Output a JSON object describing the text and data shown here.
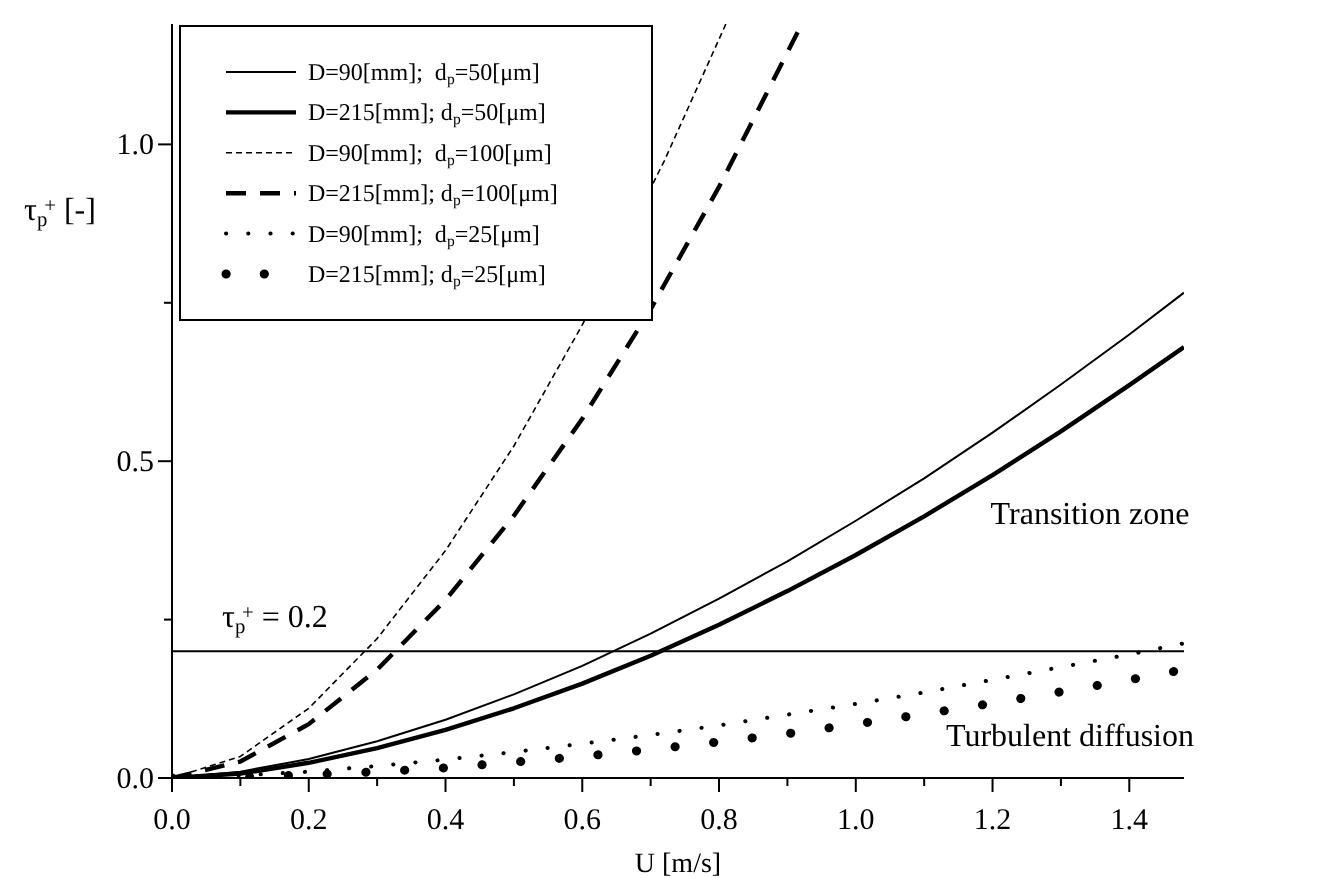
{
  "chart_data": {
    "type": "line",
    "xlabel": "U [m/s]",
    "ylabel": "τ$_{p}$$^{+}$ [-]",
    "xlim": [
      0,
      1.48
    ],
    "ylim": [
      0,
      1.19
    ],
    "xticks": [
      {
        "value": 0,
        "label": "0.0"
      },
      {
        "value": 0.1,
        "label": null
      },
      {
        "value": 0.2,
        "label": "0.2"
      },
      {
        "value": 0.3,
        "label": null
      },
      {
        "value": 0.4,
        "label": "0.4"
      },
      {
        "value": 0.5,
        "label": null
      },
      {
        "value": 0.6,
        "label": "0.6"
      },
      {
        "value": 0.7,
        "label": null
      },
      {
        "value": 0.8,
        "label": "0.8"
      },
      {
        "value": 0.9,
        "label": null
      },
      {
        "value": 1,
        "label": "1.0"
      },
      {
        "value": 1.1,
        "label": null
      },
      {
        "value": 1.2,
        "label": "1.2"
      },
      {
        "value": 1.3,
        "label": null
      },
      {
        "value": 1.4,
        "label": "1.4"
      }
    ],
    "yticks": [
      {
        "value": 0,
        "label": "0.0"
      },
      {
        "value": 0.25,
        "label": null
      },
      {
        "value": 0.5,
        "label": "0.5"
      },
      {
        "value": 0.75,
        "label": null
      },
      {
        "value": 1,
        "label": "1.0"
      }
    ],
    "grid": false,
    "legend": "top left",
    "series": [
      {
        "name": "D=90[mm];  d$_{p}$=50[μm]",
        "color": "#000000",
        "line_style": "solid",
        "x": [
          0,
          0.1,
          0.2,
          0.3,
          0.4,
          0.5,
          0.6,
          0.7,
          0.8,
          0.9,
          1.0,
          1.1,
          1.2,
          1.3,
          1.4,
          1.48
        ],
        "values": [
          0,
          0.01,
          0.03,
          0.058,
          0.092,
          0.132,
          0.177,
          0.228,
          0.283,
          0.342,
          0.406,
          0.473,
          0.545,
          0.621,
          0.7,
          0.766
        ]
      },
      {
        "name": "D=215[mm]; d$_{p}$=50[μm]",
        "color": "#000000",
        "line_style": "solid",
        "x": [
          0,
          0.1,
          0.2,
          0.3,
          0.4,
          0.5,
          0.6,
          0.7,
          0.8,
          0.9,
          1.0,
          1.1,
          1.2,
          1.3,
          1.4,
          1.48
        ],
        "values": [
          0,
          0.007,
          0.024,
          0.047,
          0.076,
          0.11,
          0.149,
          0.193,
          0.242,
          0.295,
          0.352,
          0.413,
          0.478,
          0.547,
          0.62,
          0.68
        ]
      },
      {
        "name": "D=90[mm];  d$_{p}$=100[μm]",
        "color": "#000000",
        "line_style": "dotted",
        "x": [
          0,
          0.1,
          0.2,
          0.3,
          0.4,
          0.5,
          0.6,
          0.72,
          0.81
        ],
        "values": [
          0,
          0.034,
          0.11,
          0.22,
          0.359,
          0.524,
          0.715,
          0.974,
          1.19
        ]
      },
      {
        "name": "D=215[mm]; d$_{p}$=100[μm]",
        "color": "#000000",
        "line_style": "dashed",
        "x": [
          0,
          0.1,
          0.2,
          0.3,
          0.4,
          0.5,
          0.6,
          0.7,
          0.8,
          0.915
        ],
        "values": [
          0,
          0.026,
          0.085,
          0.171,
          0.281,
          0.414,
          0.567,
          0.74,
          0.933,
          1.177
        ]
      },
      {
        "name": "D=90[mm];  d$_{p}$=25[μm]",
        "color": "#000000",
        "line_style": "dotted",
        "x": [
          0,
          0.1,
          0.2,
          0.3,
          0.4,
          0.5,
          0.6,
          0.7,
          0.8,
          0.9,
          1.0,
          1.1,
          1.2,
          1.3,
          1.4,
          1.477
        ],
        "values": [
          0,
          0.004,
          0.01,
          0.019,
          0.029,
          0.041,
          0.054,
          0.068,
          0.083,
          0.1,
          0.117,
          0.135,
          0.155,
          0.175,
          0.195,
          0.212
        ]
      },
      {
        "name": "D=215[mm]; d$_{p}$=25[μm]",
        "color": "#000000",
        "line_style": "dotted",
        "x": [
          0,
          0.1,
          0.2,
          0.3,
          0.4,
          0.5,
          0.6,
          0.7,
          0.8,
          0.9,
          1.0,
          1.1,
          1.2,
          1.3,
          1.4,
          1.465
        ],
        "values": [
          0,
          0.001,
          0.005,
          0.01,
          0.016,
          0.025,
          0.034,
          0.045,
          0.057,
          0.07,
          0.085,
          0.101,
          0.118,
          0.136,
          0.155,
          0.168
        ]
      }
    ],
    "ref_lines": [
      {
        "axis": "y",
        "value": 0.2,
        "label": "τ$_{p}$$^{+}$ = 0.2",
        "color": "#000000"
      }
    ],
    "annotations": [
      "Transition zone",
      "Turbulent diffusion"
    ]
  }
}
